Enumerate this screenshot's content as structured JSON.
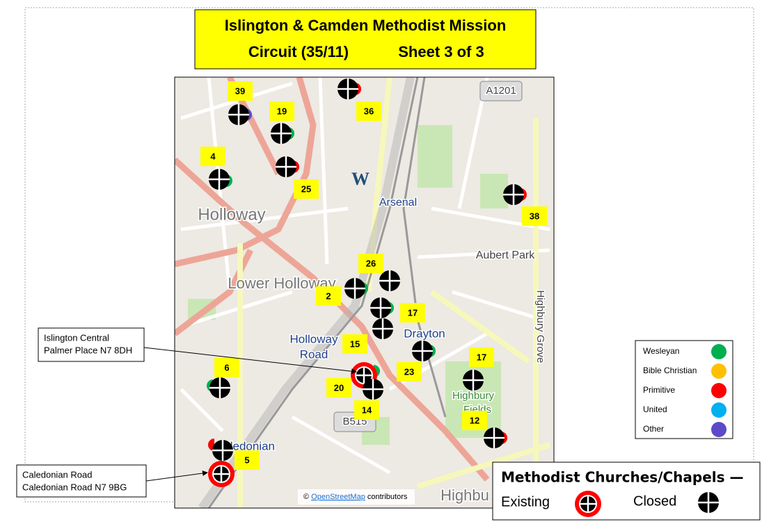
{
  "title": {
    "line1": "Islington & Camden Methodist Mission",
    "circuit": "Circuit (35/11)",
    "sheet": "Sheet 3 of 3"
  },
  "map_labels": [
    {
      "text": "Holloway",
      "kind": "area"
    },
    {
      "text": "Lower Holloway",
      "kind": "area"
    },
    {
      "text": "Arsenal",
      "kind": "station"
    },
    {
      "text": "Aubert Park",
      "kind": "street"
    },
    {
      "text": "Holloway",
      "kind": "station"
    },
    {
      "text": "Road",
      "kind": "station"
    },
    {
      "text": "Drayton",
      "kind": "station"
    },
    {
      "text": "Highbury",
      "kind": "park"
    },
    {
      "text": "Fields",
      "kind": "park"
    },
    {
      "text": "Highbury Grove",
      "kind": "street"
    },
    {
      "text": "Caledonian",
      "kind": "station"
    },
    {
      "text": "Highbu",
      "kind": "area"
    },
    {
      "text": "A1201",
      "kind": "shield"
    },
    {
      "text": "B515",
      "kind": "shield"
    },
    {
      "text": "W",
      "kind": "compass"
    }
  ],
  "attribution": {
    "symbol": "©",
    "link": "OpenStreetMap",
    "text": "contributors"
  },
  "callouts": [
    {
      "lines": [
        "Islington Central",
        "Palmer Place N7 8DH"
      ]
    },
    {
      "lines": [
        "Caledonian Road",
        "Caledonian Road N7 9BG"
      ]
    }
  ],
  "legend": [
    {
      "label": "Wesleyan",
      "color": "#00b050"
    },
    {
      "label": "Bible Christian",
      "color": "#ffc000"
    },
    {
      "label": "Primitive",
      "color": "#ff0000"
    },
    {
      "label": "United",
      "color": "#00b0f0"
    },
    {
      "label": "Other",
      "color": "#5b4bc8"
    }
  ],
  "key": {
    "title": "Methodist Churches/Chapels —",
    "existing": "Existing",
    "closed": "Closed"
  },
  "markers": [
    {
      "label": "39",
      "status": "closed",
      "denomination": "Other"
    },
    {
      "label": "19",
      "status": "closed",
      "denomination": "Wesleyan"
    },
    {
      "label": "36",
      "status": "closed",
      "denomination": "Primitive"
    },
    {
      "label": "4",
      "status": "closed",
      "denomination": "Wesleyan"
    },
    {
      "label": "25",
      "status": "closed",
      "denomination": "Primitive"
    },
    {
      "label": "38",
      "status": "closed",
      "denomination": "Primitive"
    },
    {
      "label": "26",
      "status": "closed"
    },
    {
      "label": "2",
      "status": "closed",
      "denomination": "Wesleyan"
    },
    {
      "label": "17",
      "status": "closed",
      "denomination": "Wesleyan"
    },
    {
      "label": "15",
      "status": "closed"
    },
    {
      "label": "20",
      "status": "existing",
      "denomination": "Wesleyan"
    },
    {
      "label": "14",
      "status": "closed"
    },
    {
      "label": "23",
      "status": "closed",
      "denomination": "Wesleyan"
    },
    {
      "label": "17",
      "status": "closed"
    },
    {
      "label": "6",
      "status": "closed",
      "denomination": "Wesleyan"
    },
    {
      "label": "12",
      "status": "closed",
      "denomination": "Primitive"
    },
    {
      "status": "closed",
      "denomination": "Primitive"
    },
    {
      "label": "5",
      "status": "existing"
    }
  ]
}
